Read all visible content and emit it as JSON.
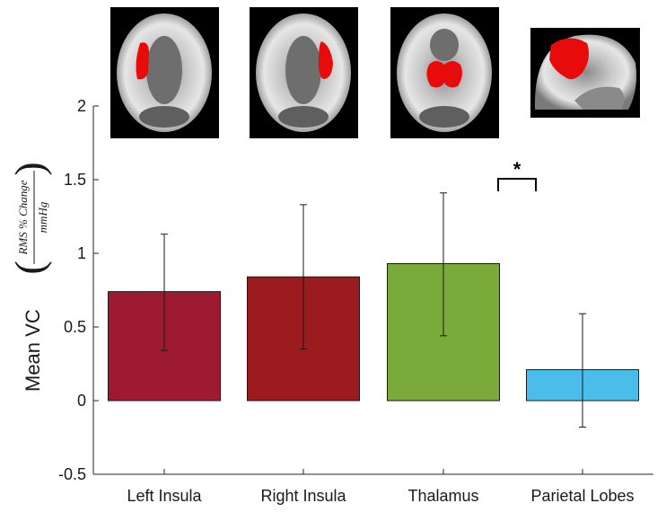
{
  "chart_data": {
    "type": "bar",
    "categories": [
      "Left Insula",
      "Right Insula",
      "Thalamus",
      "Parietal Lobes"
    ],
    "values": [
      0.74,
      0.84,
      0.93,
      0.21
    ],
    "error_low": [
      0.34,
      0.35,
      0.44,
      -0.18
    ],
    "error_high": [
      1.13,
      1.33,
      1.41,
      0.59
    ],
    "colors": [
      "#9e1a30",
      "#9b1b1e",
      "#7aab3a",
      "#4bbdea"
    ],
    "ylim": [
      -0.5,
      2
    ],
    "yticks": [
      "2",
      "1.5",
      "1",
      "0.5",
      "0",
      "-0.5"
    ],
    "ytick_values": [
      2,
      1.5,
      1,
      0.5,
      0,
      -0.5
    ],
    "ylabel": "Mean VC",
    "ylabel_numerator": "RMS % Change",
    "ylabel_denominator": "mmHg",
    "ylabel_paren_open": "(",
    "ylabel_paren_close": ")",
    "significance": {
      "between": [
        "Thalamus",
        "Parietal Lobes"
      ],
      "marker": "*"
    },
    "region_images": [
      "left-insula-axial-slice",
      "right-insula-axial-slice",
      "thalamus-axial-slice",
      "parietal-sagittal-slice"
    ],
    "grid": false
  }
}
